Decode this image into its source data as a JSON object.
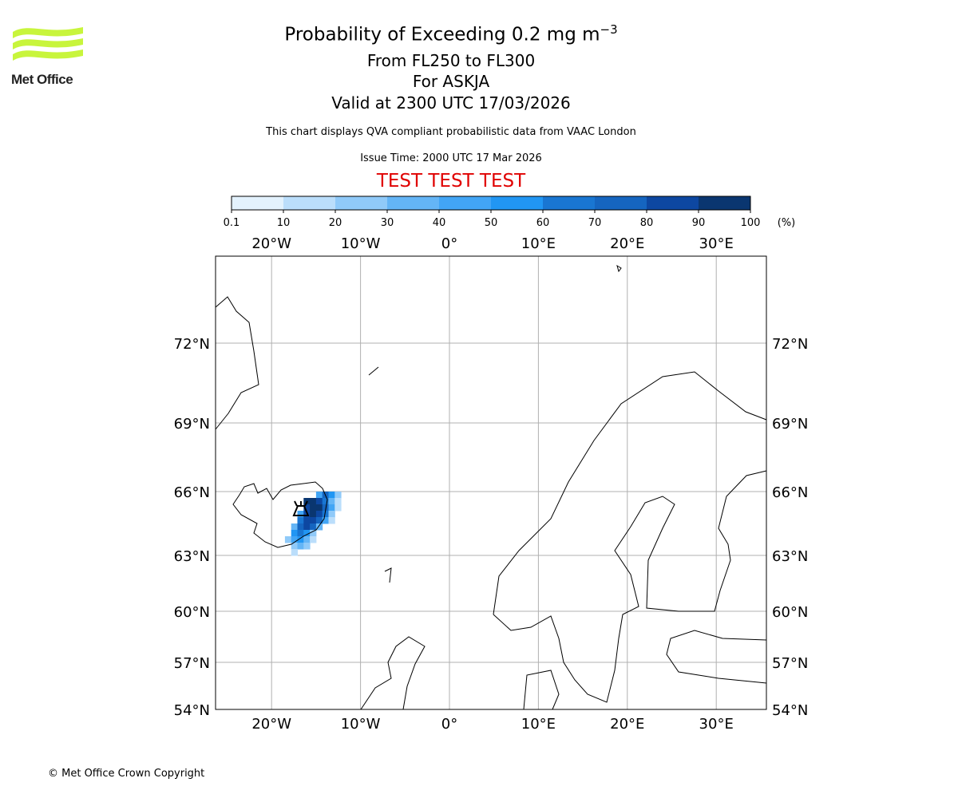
{
  "header": {
    "title": "Probability of Exceeding 0.2 mg m",
    "title_sup": "−3",
    "subtitle_levels": "From FL250 to FL300",
    "subtitle_volcano": "For ASKJA",
    "subtitle_valid": "Valid at 2300 UTC 17/03/2026",
    "note": "This chart displays QVA compliant probabilistic data from VAAC London",
    "issue_time": "Issue Time: 2000 UTC 17 Mar 2026",
    "test_banner": "TEST TEST TEST"
  },
  "logo": {
    "text": "Met Office",
    "color": "#c8f53c"
  },
  "footer": {
    "copyright": "© Met Office Crown Copyright"
  },
  "chart_data": {
    "type": "heatmap",
    "title": "Probability of Exceeding 0.2 mg m−3",
    "colorbar": {
      "ticks": [
        "0.1",
        "10",
        "20",
        "30",
        "40",
        "50",
        "60",
        "70",
        "80",
        "90",
        "100"
      ],
      "unit": "(%)",
      "colors": [
        "#e3f2fd",
        "#bbdefb",
        "#90caf9",
        "#64b5f6",
        "#42a5f5",
        "#2196f3",
        "#1976d2",
        "#1565c0",
        "#0d47a1",
        "#0a3670"
      ]
    },
    "lon_ticks": [
      {
        "value": -20,
        "label": "20°W"
      },
      {
        "value": -10,
        "label": "10°W"
      },
      {
        "value": 0,
        "label": "0°"
      },
      {
        "value": 10,
        "label": "10°E"
      },
      {
        "value": 20,
        "label": "20°E"
      },
      {
        "value": 30,
        "label": "30°E"
      }
    ],
    "lat_ticks": [
      {
        "value": 72,
        "label": "72°N"
      },
      {
        "value": 69,
        "label": "69°N"
      },
      {
        "value": 66,
        "label": "66°N"
      },
      {
        "value": 63,
        "label": "63°N"
      },
      {
        "value": 60,
        "label": "60°N"
      },
      {
        "value": 57,
        "label": "57°N"
      },
      {
        "value": 54,
        "label": "54°N"
      }
    ],
    "grid": true,
    "volcano": {
      "name": "ASKJA",
      "lon": -16.7,
      "lat": 65.1
    },
    "cell_size_deg": {
      "lon": 0.7,
      "lat": 0.3
    },
    "rows": [
      {
        "lat": 65.7,
        "lon_start": -15.0,
        "values": [
          40,
          70,
          50,
          20
        ]
      },
      {
        "lat": 65.4,
        "lon_start": -16.4,
        "values": [
          90,
          95,
          80,
          60,
          30,
          10
        ]
      },
      {
        "lat": 65.1,
        "lon_start": -16.4,
        "values": [
          85,
          95,
          90,
          70,
          40,
          10
        ]
      },
      {
        "lat": 64.8,
        "lon_start": -17.1,
        "values": [
          40,
          80,
          90,
          85,
          60,
          20
        ]
      },
      {
        "lat": 64.5,
        "lon_start": -17.1,
        "values": [
          60,
          80,
          85,
          70,
          40,
          10
        ]
      },
      {
        "lat": 64.2,
        "lon_start": -17.8,
        "values": [
          30,
          70,
          80,
          70,
          30
        ]
      },
      {
        "lat": 63.9,
        "lon_start": -17.8,
        "values": [
          50,
          60,
          50,
          20
        ]
      },
      {
        "lat": 63.6,
        "lon_start": -18.5,
        "values": [
          20,
          40,
          50,
          30,
          10
        ]
      },
      {
        "lat": 63.3,
        "lon_start": -17.8,
        "values": [
          20,
          30,
          20
        ]
      },
      {
        "lat": 63.0,
        "lon_start": -17.8,
        "values": [
          10
        ]
      }
    ]
  }
}
